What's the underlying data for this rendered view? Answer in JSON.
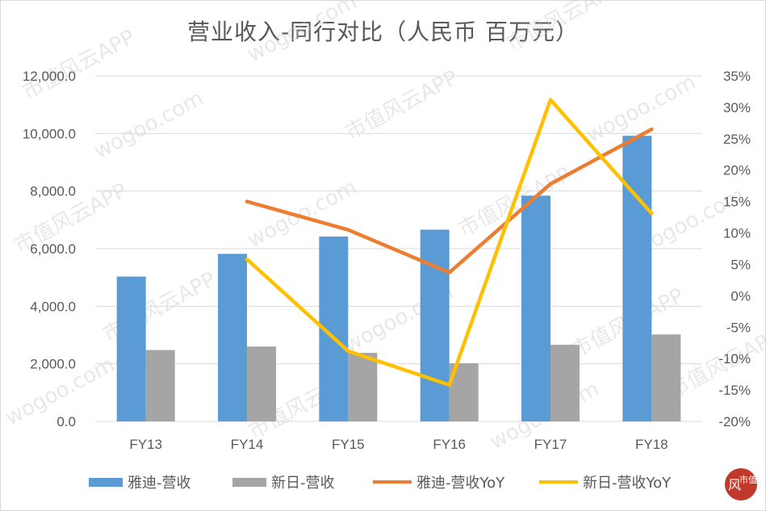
{
  "colors": {
    "yadea_bar": "#5B9BD5",
    "sunra_bar": "#A5A5A5",
    "yadea_line": "#ED7D31",
    "sunra_line": "#FFC000",
    "text": "#595959",
    "grid": "#d9d9d9"
  },
  "watermark": {
    "text_cn": "市值风云APP",
    "text_url": "wogoo.com"
  },
  "logo": {
    "glyph_a": "风",
    "glyph_b": "市值"
  },
  "chart_data": {
    "type": "bar",
    "title": "营业收入-同行对比（人民币 百万元）",
    "categories": [
      "FY13",
      "FY14",
      "FY15",
      "FY16",
      "FY17",
      "FY18"
    ],
    "y_left": {
      "min": 0,
      "max": 12000,
      "step": 2000,
      "tick_labels": [
        "0.0",
        "2,000.0",
        "4,000.0",
        "6,000.0",
        "8,000.0",
        "10,000.0",
        "12,000.0"
      ]
    },
    "y_right": {
      "min": -20,
      "max": 35,
      "step": 5,
      "tick_labels": [
        "-20%",
        "-15%",
        "-10%",
        "-5%",
        "0%",
        "5%",
        "10%",
        "15%",
        "20%",
        "25%",
        "30%",
        "35%"
      ]
    },
    "grid": true,
    "legend_position": "bottom",
    "series": [
      {
        "name": "雅迪-营收",
        "type": "bar",
        "axis": "left",
        "values": [
          5030,
          5820,
          6420,
          6660,
          7840,
          9920
        ]
      },
      {
        "name": "新日-营收",
        "type": "bar",
        "axis": "left",
        "values": [
          2480,
          2600,
          2380,
          2020,
          2660,
          3020
        ]
      },
      {
        "name": "雅迪-营收YoY",
        "type": "line",
        "axis": "right",
        "values": [
          null,
          15.0,
          10.5,
          3.7,
          17.8,
          26.5
        ]
      },
      {
        "name": "新日-营收YoY",
        "type": "line",
        "axis": "right",
        "values": [
          null,
          5.8,
          -8.8,
          -14.2,
          31.2,
          13.1
        ]
      }
    ]
  }
}
